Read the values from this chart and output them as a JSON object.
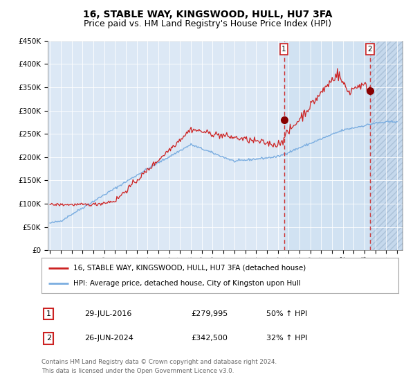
{
  "title": "16, STABLE WAY, KINGSWOOD, HULL, HU7 3FA",
  "subtitle": "Price paid vs. HM Land Registry's House Price Index (HPI)",
  "ylim": [
    0,
    450000
  ],
  "yticks": [
    0,
    50000,
    100000,
    150000,
    200000,
    250000,
    300000,
    350000,
    400000,
    450000
  ],
  "ytick_labels": [
    "£0",
    "£50K",
    "£100K",
    "£150K",
    "£200K",
    "£250K",
    "£300K",
    "£350K",
    "£400K",
    "£450K"
  ],
  "xtick_years": [
    1995,
    1996,
    1997,
    1998,
    1999,
    2000,
    2001,
    2002,
    2003,
    2004,
    2005,
    2006,
    2007,
    2008,
    2009,
    2010,
    2011,
    2012,
    2013,
    2014,
    2015,
    2016,
    2017,
    2018,
    2019,
    2020,
    2021,
    2022,
    2023,
    2024,
    2025,
    2026,
    2027
  ],
  "xmin": 1994.8,
  "xmax": 2027.5,
  "sale1_date": 2016.57,
  "sale1_value": 279995,
  "sale2_date": 2024.48,
  "sale2_value": 342500,
  "hpi_color": "#7aade0",
  "price_color": "#cc2222",
  "plot_bg": "#dce8f5",
  "hatch_bg": "#c5d8ec",
  "legend_entry1": "16, STABLE WAY, KINGSWOOD, HULL, HU7 3FA (detached house)",
  "legend_entry2": "HPI: Average price, detached house, City of Kingston upon Hull",
  "table_row1": [
    "1",
    "29-JUL-2016",
    "£279,995",
    "50% ↑ HPI"
  ],
  "table_row2": [
    "2",
    "26-JUN-2024",
    "£342,500",
    "32% ↑ HPI"
  ],
  "footer": "Contains HM Land Registry data © Crown copyright and database right 2024.\nThis data is licensed under the Open Government Licence v3.0.",
  "title_fontsize": 10,
  "subtitle_fontsize": 9
}
